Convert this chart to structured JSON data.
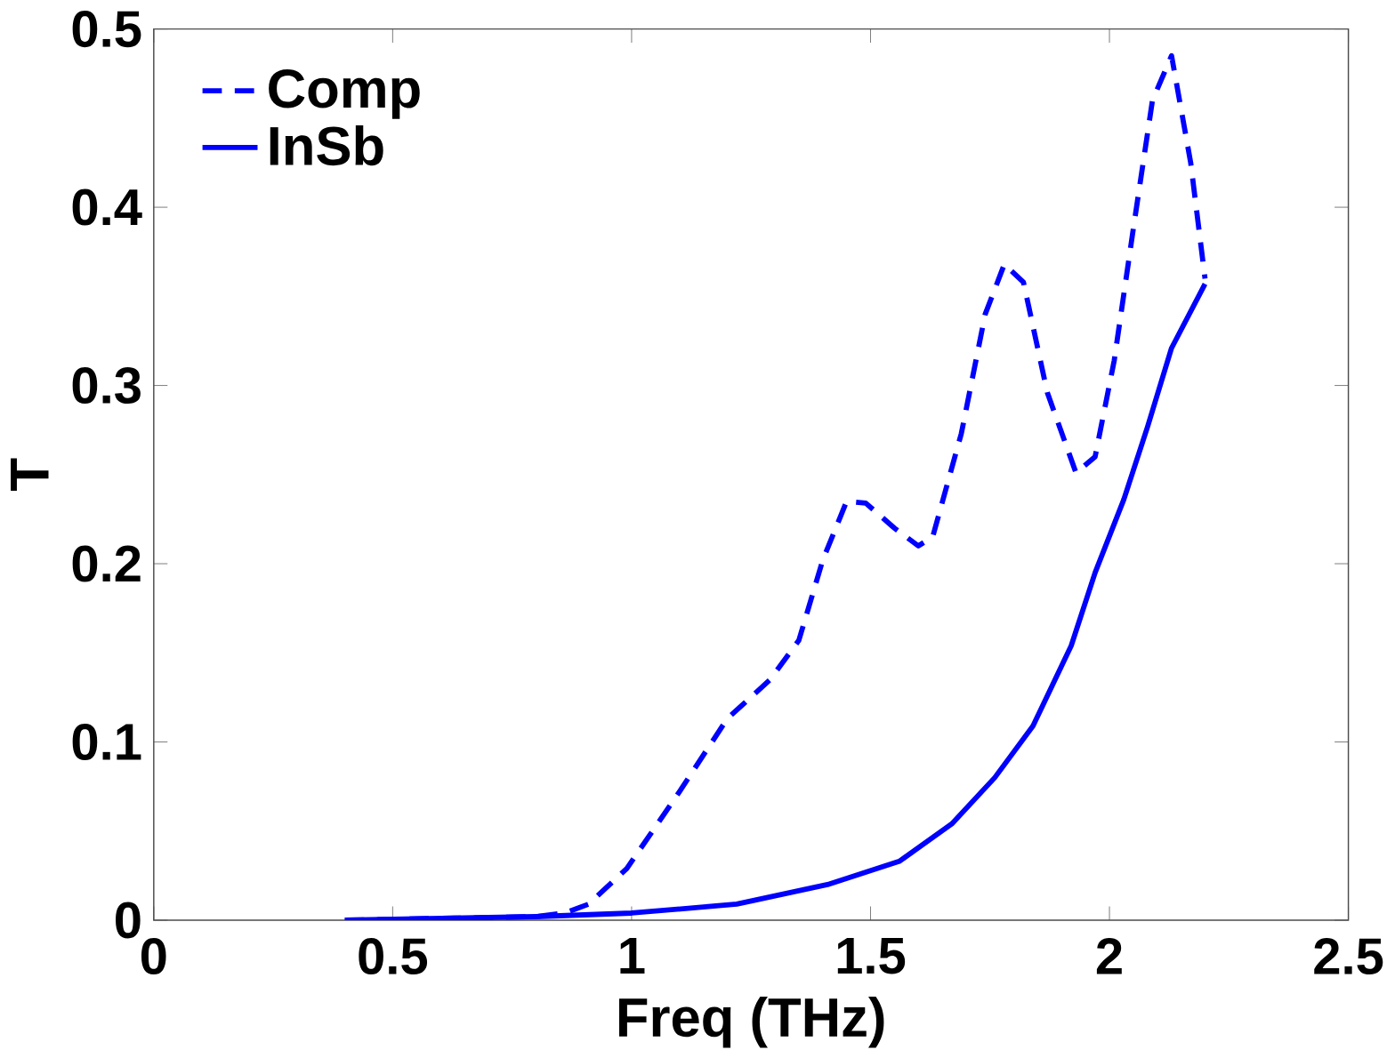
{
  "chart_data": {
    "type": "line",
    "xlabel": "Freq (THz)",
    "ylabel": "T",
    "xlim": [
      0,
      2.5
    ],
    "ylim": [
      0,
      0.5
    ],
    "xticks": [
      0,
      0.5,
      1,
      1.5,
      2,
      2.5
    ],
    "yticks": [
      0,
      0.1,
      0.2,
      0.3,
      0.4,
      0.5
    ],
    "legend": "top left",
    "grid": false,
    "series": [
      {
        "name": "Comp",
        "color": "#0000ff",
        "line_style": "dashed",
        "x": [
          0.4,
          0.6,
          0.8,
          0.86,
          0.91,
          0.99,
          1.1,
          1.2,
          1.29,
          1.35,
          1.4,
          1.45,
          1.49,
          1.55,
          1.6,
          1.63,
          1.69,
          1.74,
          1.78,
          1.82,
          1.87,
          1.93,
          1.97,
          2.01,
          2.05,
          2.09,
          2.13,
          2.17,
          2.2
        ],
        "values": [
          0,
          0.001,
          0.002,
          0.004,
          0.009,
          0.029,
          0.072,
          0.113,
          0.135,
          0.157,
          0.202,
          0.235,
          0.234,
          0.22,
          0.21,
          0.215,
          0.273,
          0.34,
          0.368,
          0.358,
          0.296,
          0.251,
          0.26,
          0.314,
          0.388,
          0.46,
          0.485,
          0.425,
          0.36
        ]
      },
      {
        "name": "InSb",
        "color": "#0000ff",
        "line_style": "solid",
        "x": [
          0.4,
          0.6,
          0.8,
          1.0,
          1.22,
          1.41,
          1.56,
          1.67,
          1.76,
          1.84,
          1.92,
          1.97,
          2.03,
          2.08,
          2.13,
          2.2
        ],
        "values": [
          0,
          0.001,
          0.002,
          0.004,
          0.009,
          0.02,
          0.033,
          0.054,
          0.08,
          0.109,
          0.154,
          0.195,
          0.236,
          0.277,
          0.321,
          0.357
        ]
      }
    ]
  }
}
